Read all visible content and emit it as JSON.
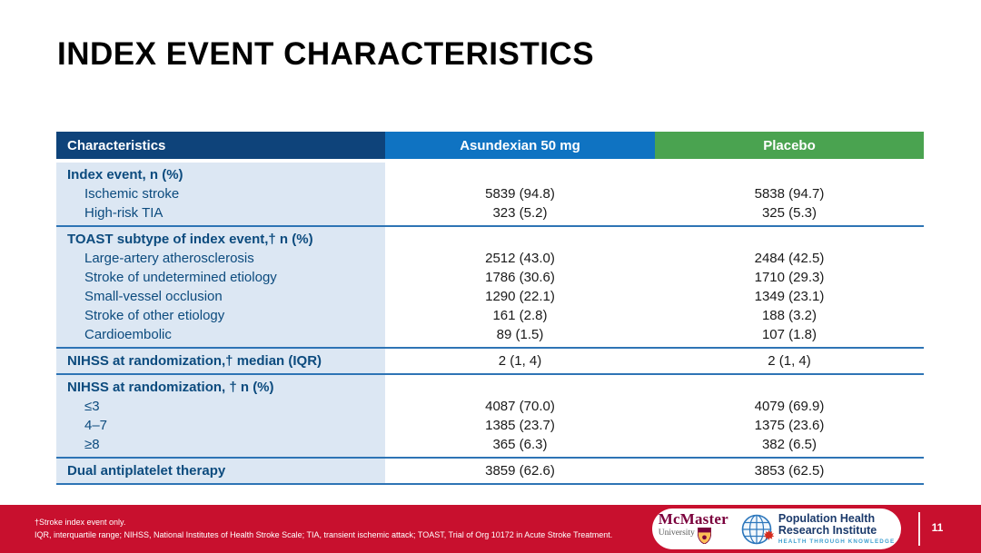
{
  "slide": {
    "title": "INDEX EVENT CHARACTERISTICS",
    "page_number": "11"
  },
  "table": {
    "columns": [
      "Characteristics",
      "Asundexian 50 mg",
      "Placebo"
    ],
    "sections": [
      {
        "rows": [
          {
            "type": "header",
            "label": "Index event, n (%)",
            "values": [
              "",
              ""
            ]
          },
          {
            "type": "item",
            "label": "Ischemic stroke",
            "values": [
              "5839 (94.8)",
              "5838 (94.7)"
            ]
          },
          {
            "type": "item",
            "label": "High-risk TIA",
            "values": [
              "323 (5.2)",
              "325 (5.3)"
            ]
          }
        ]
      },
      {
        "rows": [
          {
            "type": "header",
            "label": "TOAST subtype of index event,† n (%)",
            "values": [
              "",
              ""
            ]
          },
          {
            "type": "item",
            "label": "Large-artery atherosclerosis",
            "values": [
              "2512 (43.0)",
              "2484 (42.5)"
            ]
          },
          {
            "type": "item",
            "label": "Stroke of undetermined etiology",
            "values": [
              "1786 (30.6)",
              "1710 (29.3)"
            ]
          },
          {
            "type": "item",
            "label": "Small-vessel occlusion",
            "values": [
              "1290 (22.1)",
              "1349 (23.1)"
            ]
          },
          {
            "type": "item",
            "label": "Stroke of other etiology",
            "values": [
              "161 (2.8)",
              "188 (3.2)"
            ]
          },
          {
            "type": "item",
            "label": "Cardioembolic",
            "values": [
              "89 (1.5)",
              "107 (1.8)"
            ]
          }
        ]
      },
      {
        "rows": [
          {
            "type": "header",
            "label": "NIHSS at randomization,† median (IQR)",
            "values": [
              "2 (1, 4)",
              "2 (1, 4)"
            ]
          }
        ]
      },
      {
        "rows": [
          {
            "type": "header",
            "label": "NIHSS at randomization, † n (%)",
            "values": [
              "",
              ""
            ]
          },
          {
            "type": "item",
            "label": "≤3",
            "values": [
              "4087 (70.0)",
              "4079 (69.9)"
            ]
          },
          {
            "type": "item",
            "label": "4–7",
            "values": [
              "1385 (23.7)",
              "1375 (23.6)"
            ]
          },
          {
            "type": "item",
            "label": "≥8",
            "values": [
              "365 (6.3)",
              "382 (6.5)"
            ]
          }
        ]
      },
      {
        "rows": [
          {
            "type": "header",
            "label": "Dual antiplatelet therapy",
            "values": [
              "3859 (62.6)",
              "3853 (62.5)"
            ]
          }
        ]
      }
    ]
  },
  "footer": {
    "footnote_line1": "†Stroke index event only.",
    "footnote_line2": "IQR, interquartile range; NIHSS, National Institutes of Health Stroke Scale; TIA, transient ischemic attack; TOAST, Trial of Org 10172 in Acute Stroke Treatment.",
    "logos": {
      "mcmaster_name": "McMaster",
      "mcmaster_sub": "University",
      "phri_line1": "Population Health",
      "phri_line2": "Research Institute",
      "phri_tagline": "HEALTH THROUGH KNOWLEDGE"
    }
  },
  "colors": {
    "header_characteristics": "#0E437A",
    "header_asundexian": "#0F73C2",
    "header_placebo": "#4AA350",
    "label_column_bg": "#DCE7F3",
    "row_separator": "#2E74B5",
    "label_text": "#0C4B7E",
    "footer_bar": "#C8102E",
    "mcmaster_maroon": "#7A003C",
    "phri_navy": "#1B3A6B",
    "phri_light_blue": "#3FA0D0"
  }
}
